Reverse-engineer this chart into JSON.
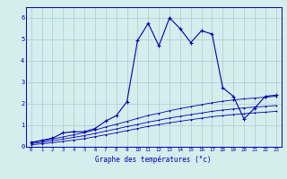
{
  "xlabel": "Graphe des températures (°c)",
  "background_color": "#d4eeed",
  "line_color": "#0000aa",
  "grid_color": "#aacccc",
  "xlim": [
    -0.5,
    23.5
  ],
  "ylim": [
    0,
    6.5
  ],
  "xticks": [
    0,
    1,
    2,
    3,
    4,
    5,
    6,
    7,
    8,
    9,
    10,
    11,
    12,
    13,
    14,
    15,
    16,
    17,
    18,
    19,
    20,
    21,
    22,
    23
  ],
  "yticks": [
    0,
    1,
    2,
    3,
    4,
    5,
    6
  ],
  "series1": [
    0.2,
    0.3,
    0.4,
    0.65,
    0.7,
    0.7,
    0.85,
    1.2,
    1.45,
    2.1,
    4.95,
    5.75,
    4.7,
    6.0,
    5.5,
    4.85,
    5.4,
    5.25,
    2.75,
    2.35,
    1.3,
    1.8,
    2.35,
    2.4
  ],
  "series2": [
    0.2,
    0.28,
    0.36,
    0.46,
    0.56,
    0.66,
    0.78,
    0.92,
    1.05,
    1.18,
    1.32,
    1.46,
    1.56,
    1.68,
    1.78,
    1.87,
    1.96,
    2.05,
    2.12,
    2.18,
    2.23,
    2.27,
    2.31,
    2.35
  ],
  "series3": [
    0.15,
    0.21,
    0.28,
    0.36,
    0.44,
    0.52,
    0.62,
    0.73,
    0.83,
    0.94,
    1.04,
    1.15,
    1.24,
    1.34,
    1.42,
    1.5,
    1.57,
    1.65,
    1.71,
    1.76,
    1.81,
    1.85,
    1.88,
    1.92
  ],
  "series4": [
    0.1,
    0.14,
    0.19,
    0.25,
    0.31,
    0.38,
    0.47,
    0.56,
    0.65,
    0.75,
    0.85,
    0.95,
    1.03,
    1.12,
    1.19,
    1.26,
    1.33,
    1.4,
    1.45,
    1.5,
    1.54,
    1.58,
    1.61,
    1.65
  ]
}
